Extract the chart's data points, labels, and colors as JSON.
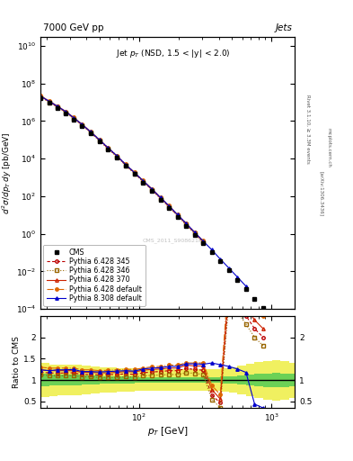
{
  "title_top": "7000 GeV pp",
  "title_right": "Jets",
  "watermark": "CMS_2011_S9086218",
  "rivet_label": "Rivet 3.1.10, ≥ 3.3M events",
  "arxiv_label": "[arXiv:1306.3436]",
  "mcplots_label": "mcplots.cern.ch",
  "cms_pt": [
    18,
    21,
    24,
    28,
    32,
    37,
    43,
    50,
    58,
    68,
    79,
    92,
    107,
    125,
    145,
    168,
    195,
    226,
    262,
    304,
    354,
    410,
    476,
    552,
    642,
    746,
    865,
    1005,
    1166,
    1354
  ],
  "cms_val": [
    17000000.0,
    9000000.0,
    5000000.0,
    2500000.0,
    1200000.0,
    550000.0,
    220000.0,
    85000.0,
    32000.0,
    11500.0,
    4000,
    1500,
    530,
    185,
    65,
    23,
    7.8,
    2.6,
    0.88,
    0.3,
    0.1,
    0.033,
    0.011,
    0.0035,
    0.0011,
    0.00035,
    0.00011,
    3e-05,
    7e-06,
    1.5e-06
  ],
  "py6_345_pt": [
    18,
    21,
    24,
    28,
    32,
    37,
    43,
    50,
    58,
    68,
    79,
    92,
    107,
    125,
    145,
    168,
    195,
    226,
    262,
    304,
    354
  ],
  "py6_345_val": [
    20000000.0,
    10500000.0,
    5800000.0,
    2900000.0,
    1400000.0,
    620000.0,
    250000.0,
    95000.0,
    36000.0,
    13000.0,
    4600,
    1700,
    620,
    220,
    78,
    28,
    9.5,
    3.3,
    1.1,
    0.37,
    1e-10
  ],
  "py6_346_pt": [
    18,
    21,
    24,
    28,
    32,
    37,
    43,
    50,
    58,
    68,
    79,
    92,
    107,
    125,
    145,
    168,
    195,
    226,
    262,
    304,
    354
  ],
  "py6_346_val": [
    19000000.0,
    10000000.0,
    5500000.0,
    2750000.0,
    1330000.0,
    590000.0,
    237000.0,
    90000.0,
    34000.0,
    12200.0,
    4300,
    1600,
    580,
    205,
    73,
    26,
    8.8,
    3.05,
    1.02,
    0.34,
    1e-10
  ],
  "py6_370_pt": [
    18,
    21,
    24,
    28,
    32,
    37,
    43,
    50,
    58,
    68,
    79,
    92,
    107,
    125,
    145,
    168,
    195,
    226,
    262,
    304,
    354
  ],
  "py6_370_val": [
    21000000.0,
    11000000.0,
    6100000.0,
    3050000.0,
    1470000.0,
    650000.0,
    260000.0,
    99000.0,
    37600.0,
    13600.0,
    4800,
    1780,
    650,
    232,
    82,
    29.5,
    10.0,
    3.5,
    1.17,
    0.4,
    1e-10
  ],
  "py6_def_pt": [
    18,
    21,
    24,
    28,
    32,
    37,
    43,
    50,
    58,
    68,
    79,
    92,
    107,
    125,
    145,
    168,
    195,
    226,
    262,
    304,
    354
  ],
  "py6_def_val": [
    22000000.0,
    11500000.0,
    6400000.0,
    3200000.0,
    1540000.0,
    680000.0,
    273000.0,
    104000.0,
    39500.0,
    14300.0,
    5000,
    1870,
    680,
    243,
    86,
    31,
    10.5,
    3.65,
    1.23,
    0.42,
    1e-10
  ],
  "py8_def_pt": [
    18,
    21,
    24,
    28,
    32,
    37,
    43,
    50,
    58,
    68,
    79,
    92,
    107,
    125,
    145,
    168,
    195,
    226,
    262,
    304,
    354,
    410,
    476,
    552,
    642
  ],
  "py8_def_val": [
    21000000.0,
    11000000.0,
    6200000.0,
    3100000.0,
    1500000.0,
    660000.0,
    265000.0,
    101000.0,
    38400.0,
    13900.0,
    4870,
    1820,
    665,
    237,
    84,
    30.5,
    10.3,
    3.6,
    1.21,
    0.41,
    0.14,
    0.045,
    0.015,
    0.005,
    0.0016
  ],
  "ratio_pt": [
    18,
    21,
    24,
    28,
    32,
    37,
    43,
    50,
    58,
    68,
    79,
    92,
    107,
    125,
    145,
    168,
    195,
    226,
    262,
    304,
    354,
    410,
    476,
    552,
    642,
    746,
    865
  ],
  "ratio_py6_345": [
    1.18,
    1.17,
    1.16,
    1.17,
    1.17,
    1.13,
    1.13,
    1.12,
    1.13,
    1.13,
    1.15,
    1.13,
    1.17,
    1.19,
    1.2,
    1.22,
    1.22,
    1.27,
    1.25,
    1.23,
    0.65,
    0.47,
    3.0,
    2.8,
    2.5,
    2.2,
    2.0
  ],
  "ratio_py6_346": [
    1.12,
    1.11,
    1.1,
    1.1,
    1.11,
    1.07,
    1.08,
    1.06,
    1.06,
    1.06,
    1.08,
    1.07,
    1.1,
    1.11,
    1.12,
    1.13,
    1.13,
    1.17,
    1.16,
    1.13,
    0.55,
    0.36,
    2.8,
    2.6,
    2.3,
    2.0,
    1.8
  ],
  "ratio_py6_370": [
    1.24,
    1.22,
    1.22,
    1.22,
    1.22,
    1.18,
    1.18,
    1.17,
    1.17,
    1.18,
    1.2,
    1.19,
    1.23,
    1.25,
    1.26,
    1.28,
    1.28,
    1.35,
    1.33,
    1.33,
    0.78,
    0.56,
    3.2,
    3.0,
    2.7,
    2.4,
    2.2
  ],
  "ratio_py6_def": [
    1.3,
    1.28,
    1.28,
    1.28,
    1.28,
    1.24,
    1.24,
    1.22,
    1.23,
    1.24,
    1.25,
    1.25,
    1.28,
    1.31,
    1.32,
    1.35,
    1.35,
    1.4,
    1.4,
    1.4,
    0.88,
    0.66,
    3.5,
    3.3,
    3.0,
    2.7,
    2.5
  ],
  "ratio_py8_def": [
    1.24,
    1.22,
    1.24,
    1.24,
    1.25,
    1.2,
    1.2,
    1.19,
    1.2,
    1.21,
    1.22,
    1.21,
    1.26,
    1.28,
    1.29,
    1.32,
    1.32,
    1.38,
    1.38,
    1.37,
    1.4,
    1.36,
    1.32,
    1.26,
    1.18,
    0.44,
    0.35
  ],
  "green_band_x": [
    18,
    21,
    24,
    28,
    32,
    37,
    43,
    50,
    58,
    68,
    79,
    92,
    107,
    125,
    145,
    168,
    195,
    226,
    262,
    304,
    354,
    410,
    476,
    552,
    642,
    746,
    865,
    1005,
    1166,
    1354,
    1500
  ],
  "green_band_lo": [
    0.85,
    0.87,
    0.88,
    0.88,
    0.88,
    0.89,
    0.9,
    0.91,
    0.91,
    0.92,
    0.92,
    0.93,
    0.93,
    0.93,
    0.93,
    0.93,
    0.93,
    0.93,
    0.93,
    0.93,
    0.93,
    0.92,
    0.91,
    0.9,
    0.88,
    0.86,
    0.84,
    0.83,
    0.84,
    0.86,
    0.88
  ],
  "green_band_hi": [
    1.15,
    1.13,
    1.12,
    1.12,
    1.12,
    1.11,
    1.1,
    1.09,
    1.09,
    1.08,
    1.08,
    1.07,
    1.07,
    1.07,
    1.07,
    1.07,
    1.07,
    1.07,
    1.07,
    1.07,
    1.07,
    1.08,
    1.09,
    1.1,
    1.12,
    1.14,
    1.16,
    1.17,
    1.16,
    1.14,
    1.12
  ],
  "yellow_band_lo": [
    0.6,
    0.63,
    0.65,
    0.65,
    0.65,
    0.67,
    0.69,
    0.71,
    0.71,
    0.73,
    0.73,
    0.75,
    0.75,
    0.75,
    0.75,
    0.75,
    0.75,
    0.75,
    0.75,
    0.75,
    0.75,
    0.73,
    0.7,
    0.66,
    0.62,
    0.58,
    0.55,
    0.53,
    0.55,
    0.59,
    0.63
  ],
  "yellow_band_hi": [
    1.4,
    1.37,
    1.35,
    1.35,
    1.35,
    1.33,
    1.31,
    1.29,
    1.29,
    1.27,
    1.27,
    1.25,
    1.25,
    1.25,
    1.25,
    1.25,
    1.25,
    1.25,
    1.25,
    1.25,
    1.25,
    1.27,
    1.3,
    1.34,
    1.38,
    1.42,
    1.45,
    1.47,
    1.45,
    1.41,
    1.37
  ],
  "colors": {
    "cms": "#000000",
    "py6_345": "#bb0000",
    "py6_346": "#996600",
    "py6_370": "#cc2200",
    "py6_def": "#dd6600",
    "py8_def": "#0000cc"
  },
  "background_color": "#ffffff",
  "green_color": "#55cc55",
  "yellow_color": "#eeee44",
  "frame_color": "#aaaaaa"
}
